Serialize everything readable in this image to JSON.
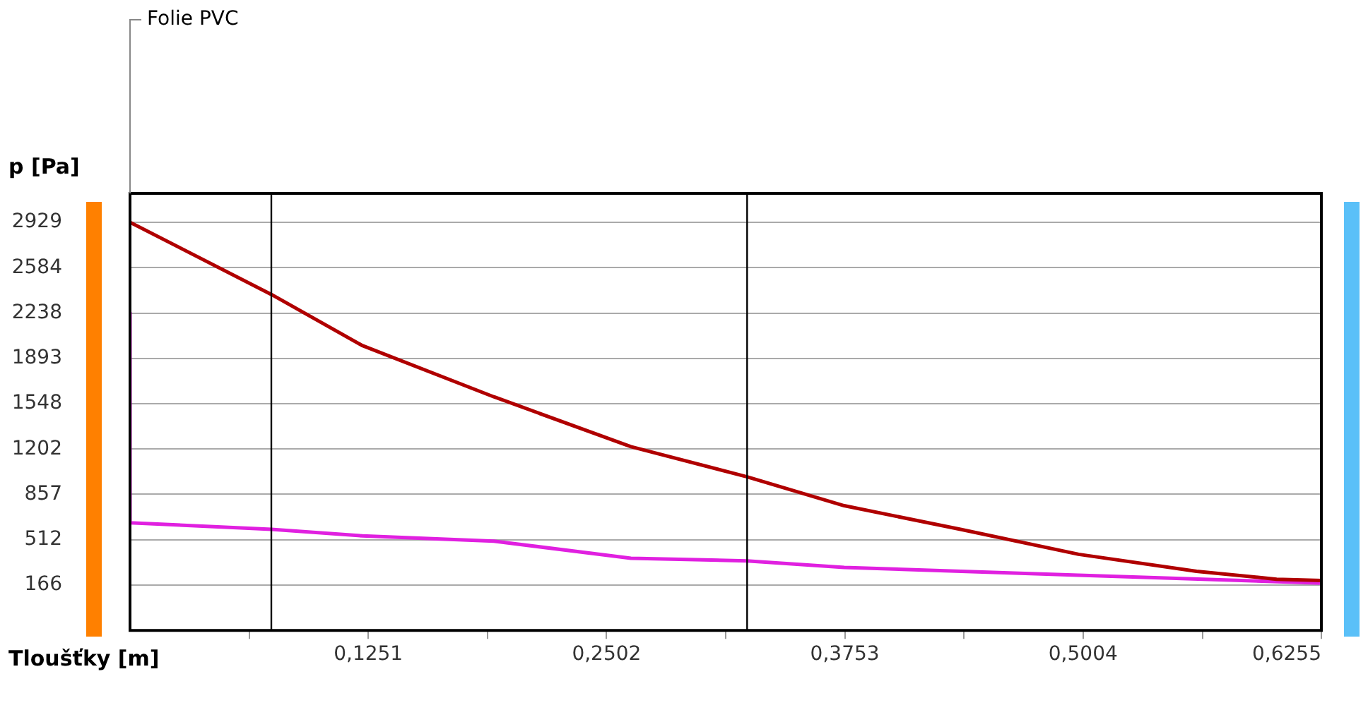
{
  "chart_data": {
    "type": "line",
    "xlabel": "Tloušťky [m]",
    "ylabel": "p [Pa]",
    "annotations": [
      "Folie PVC"
    ],
    "xlim": [
      0,
      0.6255
    ],
    "ylim": [
      -180,
      3150
    ],
    "xticks": [
      {
        "value": 0.0626,
        "label": null
      },
      {
        "value": 0.1251,
        "label": "0,1251"
      },
      {
        "value": 0.1877,
        "label": null
      },
      {
        "value": 0.2502,
        "label": "0,2502"
      },
      {
        "value": 0.3128,
        "label": null
      },
      {
        "value": 0.3753,
        "label": "0,3753"
      },
      {
        "value": 0.4379,
        "label": null
      },
      {
        "value": 0.5004,
        "label": "0,5004"
      },
      {
        "value": 0.563,
        "label": null
      },
      {
        "value": 0.6255,
        "label": "0,6255"
      }
    ],
    "yticks": [
      166,
      512,
      857,
      1202,
      1548,
      1893,
      2238,
      2584,
      2929
    ],
    "grid": "y",
    "legend": false,
    "marker": "none",
    "line_style": "solid",
    "ref_lines": [
      {
        "axis": "x",
        "value": 0.0742,
        "color": "#000000"
      },
      {
        "axis": "x",
        "value": 0.324,
        "color": "#000000"
      }
    ],
    "series": [
      {
        "color": "#b00000",
        "x": [
          0,
          0.0742,
          0.122,
          0.191,
          0.263,
          0.324,
          0.375,
          0.436,
          0.498,
          0.56,
          0.602,
          0.6255
        ],
        "values": [
          2930,
          2380,
          1990,
          1600,
          1220,
          990,
          770,
          590,
          400,
          270,
          210,
          200
        ]
      },
      {
        "color": "#e020e0",
        "x": [
          0,
          0,
          0.0742,
          0.122,
          0.191,
          0.263,
          0.324,
          0.375,
          0.498,
          0.6255
        ],
        "values": [
          2240,
          640,
          590,
          540,
          500,
          370,
          350,
          300,
          240,
          180
        ]
      }
    ]
  }
}
